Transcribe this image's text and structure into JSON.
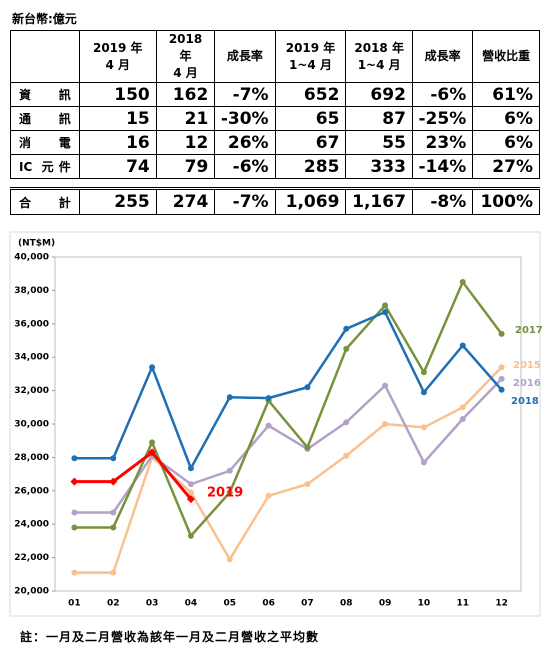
{
  "table": {
    "unit": "新台幣:億元",
    "header": [
      [
        "2019 年",
        "4 月"
      ],
      [
        "2018 年",
        "4 月"
      ],
      [
        "成長率"
      ],
      [
        "2019 年",
        "1~4 月"
      ],
      [
        "2018 年",
        "1~4 月"
      ],
      [
        "成長率"
      ],
      [
        "營收比重"
      ]
    ],
    "rows": [
      [
        "資 訊",
        "150",
        "162",
        "-7%",
        "652",
        "692",
        "-6%",
        "61%"
      ],
      [
        "通 訊",
        "15",
        "21",
        "-30%",
        "65",
        "87",
        "-25%",
        "6%"
      ],
      [
        "消 電",
        "16",
        "12",
        "26%",
        "67",
        "55",
        "23%",
        "6%"
      ],
      [
        "IC 元件",
        "74",
        "79",
        "-6%",
        "285",
        "333",
        "-14%",
        "27%"
      ],
      [
        "合 計",
        "255",
        "274",
        "-7%",
        "1,069",
        "1,167",
        "-8%",
        "100%"
      ]
    ]
  },
  "chart_data": {
    "type": "line",
    "y_label": "(NT$M)",
    "categories": [
      "01",
      "02",
      "03",
      "04",
      "05",
      "06",
      "07",
      "08",
      "09",
      "10",
      "11",
      "12"
    ],
    "ylim": [
      20000,
      40000
    ],
    "yticks": [
      {
        "value": 20000,
        "label": "20,000"
      },
      {
        "value": 22000,
        "label": "22,000"
      },
      {
        "value": 24000,
        "label": "24,000"
      },
      {
        "value": 26000,
        "label": "26,000"
      },
      {
        "value": 28000,
        "label": "28,000"
      },
      {
        "value": 30000,
        "label": "30,000"
      },
      {
        "value": 32000,
        "label": "32,000"
      },
      {
        "value": 34000,
        "label": "34,000"
      },
      {
        "value": 36000,
        "label": "36,000"
      },
      {
        "value": 38000,
        "label": "38,000"
      },
      {
        "value": 40000,
        "label": "40,000"
      }
    ],
    "series": [
      {
        "name": "2015",
        "color": "#fac090",
        "values": [
          21100,
          21100,
          28000,
          25900,
          21900,
          25700,
          26400,
          28100,
          30000,
          29800,
          31000,
          33400
        ]
      },
      {
        "name": "2016",
        "color": "#b3a2c7",
        "values": [
          24700,
          24700,
          28100,
          26400,
          27200,
          29900,
          28500,
          30100,
          32300,
          27700,
          30300,
          32700
        ]
      },
      {
        "name": "2017",
        "color": "#76923c",
        "values": [
          23800,
          23800,
          28900,
          23300,
          25900,
          31400,
          28600,
          34500,
          37100,
          33100,
          38500,
          35400
        ]
      },
      {
        "name": "2018",
        "color": "#1f6fb5",
        "values": [
          27950,
          27950,
          33400,
          27350,
          31600,
          31550,
          32200,
          35700,
          36700,
          31900,
          34700,
          32050
        ]
      },
      {
        "name": "2019",
        "color": "#ff0000",
        "values": [
          26550,
          26550,
          28300,
          25500,
          null,
          null,
          null,
          null,
          null,
          null,
          null,
          null
        ]
      }
    ]
  },
  "note": "註：一月及二月營收為該年一月及二月營收之平均數"
}
